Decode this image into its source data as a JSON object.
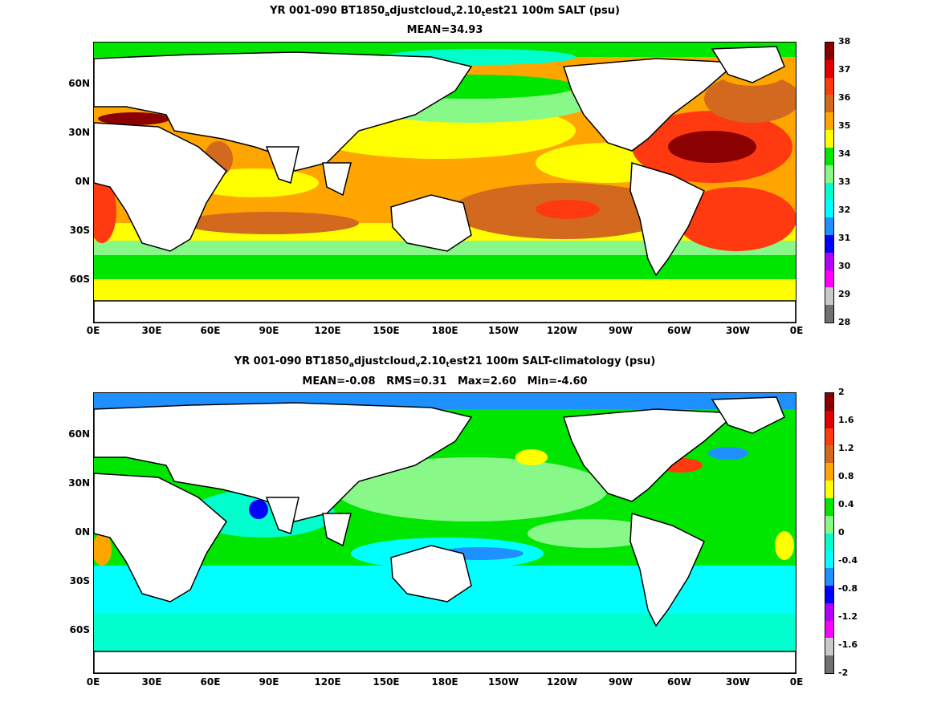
{
  "top": {
    "title_parts": [
      "YR 001-090 BT1850",
      "a",
      "djustcloud",
      "v",
      "2.10",
      "t",
      "est21 100m SALT (psu)"
    ],
    "subtitle": "MEAN=34.93",
    "colorbar_ticks": [
      "38",
      "37",
      "36",
      "35",
      "34",
      "33",
      "32",
      "31",
      "30",
      "29",
      "28"
    ],
    "colorbar_colors": [
      "#8b0000",
      "#e00000",
      "#ff3a10",
      "#d2691e",
      "#ffa500",
      "#ffff00",
      "#00e600",
      "#88f888",
      "#00ffcc",
      "#00ffff",
      "#1e90ff",
      "#0000ff",
      "#b000ff",
      "#ff00ff",
      "#c8c8c8",
      "#707070"
    ]
  },
  "bottom": {
    "title_parts": [
      "YR 001-090 BT1850",
      "a",
      "djustcloud",
      "v",
      "2.10",
      "t",
      "est21 100m SALT-climatology (psu)"
    ],
    "subtitle": "MEAN=-0.08   RMS=0.31   Max=2.60   Min=-4.60",
    "colorbar_ticks": [
      "2",
      "1.6",
      "1.2",
      "0.8",
      "0.4",
      "0",
      "-0.4",
      "-0.8",
      "-1.2",
      "-1.6",
      "-2"
    ],
    "colorbar_colors": [
      "#8b0000",
      "#e00000",
      "#ff3a10",
      "#d2691e",
      "#ffa500",
      "#ffff00",
      "#00e600",
      "#88f888",
      "#00ffcc",
      "#00ffff",
      "#1e90ff",
      "#0000ff",
      "#b000ff",
      "#ff00ff",
      "#c8c8c8",
      "#707070"
    ]
  },
  "lat_labels": [
    "60N",
    "30N",
    "0N",
    "30S",
    "60S"
  ],
  "lon_labels": [
    "0E",
    "30E",
    "60E",
    "90E",
    "120E",
    "150E",
    "180E",
    "150W",
    "120W",
    "90W",
    "60W",
    "30W",
    "0E"
  ]
}
